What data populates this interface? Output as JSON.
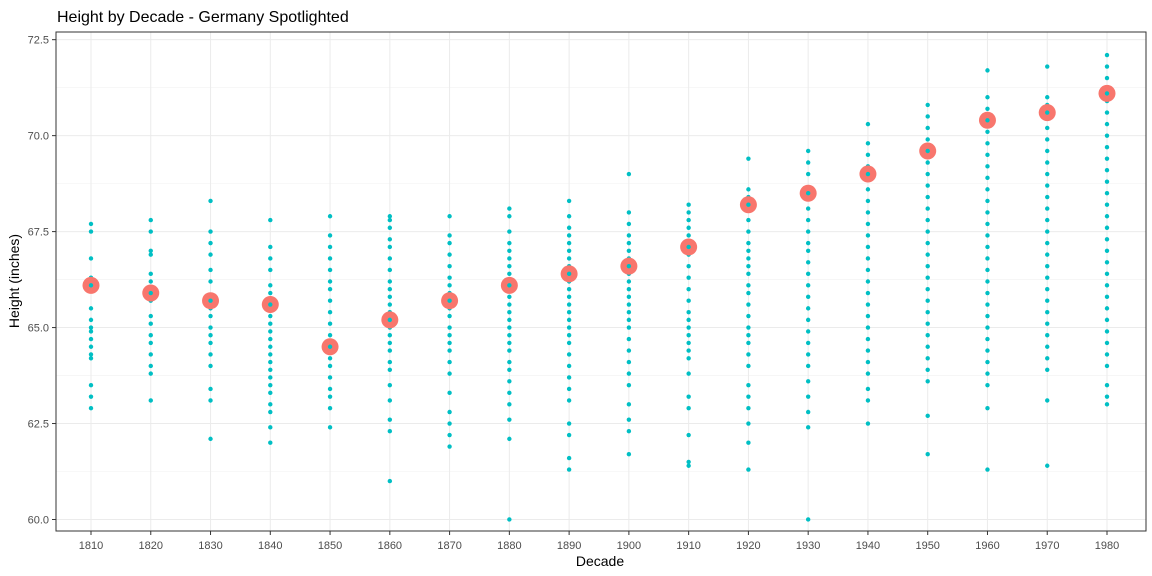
{
  "chart_data": {
    "type": "scatter",
    "title": "Height by Decade - Germany Spotlighted",
    "xlabel": "Decade",
    "ylabel": "Height (inches)",
    "x_ticks": [
      "1810",
      "1820",
      "1830",
      "1840",
      "1850",
      "1860",
      "1870",
      "1880",
      "1890",
      "1900",
      "1910",
      "1920",
      "1930",
      "1940",
      "1950",
      "1960",
      "1970",
      "1980"
    ],
    "y_ticks": [
      "60.0",
      "62.5",
      "65.0",
      "67.5",
      "70.0",
      "72.5"
    ],
    "ylim": [
      59.7,
      72.7
    ],
    "grid": true,
    "colors": {
      "points": "#00BFC4",
      "highlight": "#F8766D"
    },
    "series": [
      {
        "role": "countries",
        "points": [
          {
            "decade": 1810,
            "values": [
              67.7,
              67.5,
              66.8,
              66.3,
              66.1,
              65.5,
              65.2,
              65.0,
              64.9,
              64.7,
              64.5,
              64.3,
              64.2,
              63.5,
              63.2,
              62.9
            ]
          },
          {
            "decade": 1820,
            "values": [
              67.8,
              67.5,
              67.0,
              66.9,
              66.4,
              66.2,
              65.9,
              65.7,
              65.3,
              65.1,
              64.8,
              64.6,
              64.3,
              64.0,
              63.8,
              63.1
            ]
          },
          {
            "decade": 1830,
            "values": [
              68.3,
              67.5,
              67.2,
              66.9,
              66.5,
              66.2,
              65.8,
              65.5,
              65.3,
              65.0,
              64.8,
              64.6,
              64.3,
              64.0,
              63.4,
              63.1,
              62.1
            ]
          },
          {
            "decade": 1840,
            "values": [
              67.8,
              67.1,
              66.8,
              66.5,
              66.1,
              65.9,
              65.7,
              65.5,
              65.3,
              65.1,
              64.9,
              64.7,
              64.5,
              64.3,
              64.1,
              63.9,
              63.7,
              63.5,
              63.3,
              63.0,
              62.8,
              62.4,
              62.0
            ]
          },
          {
            "decade": 1850,
            "values": [
              67.9,
              67.4,
              67.1,
              66.8,
              66.5,
              66.2,
              66.0,
              65.7,
              65.4,
              65.1,
              64.8,
              64.6,
              64.4,
              64.2,
              64.0,
              63.7,
              63.4,
              63.2,
              62.9,
              62.4
            ]
          },
          {
            "decade": 1860,
            "values": [
              67.9,
              67.8,
              67.6,
              67.3,
              67.1,
              66.8,
              66.5,
              66.2,
              66.0,
              65.8,
              65.6,
              65.4,
              65.2,
              65.0,
              64.8,
              64.6,
              64.4,
              64.1,
              63.9,
              63.5,
              63.1,
              62.6,
              62.3,
              61.0
            ]
          },
          {
            "decade": 1870,
            "values": [
              67.9,
              67.4,
              67.2,
              66.9,
              66.6,
              66.3,
              66.1,
              65.9,
              65.7,
              65.5,
              65.3,
              65.0,
              64.8,
              64.6,
              64.4,
              64.1,
              63.8,
              63.3,
              62.8,
              62.5,
              62.2,
              61.9
            ]
          },
          {
            "decade": 1880,
            "values": [
              68.1,
              67.9,
              67.5,
              67.2,
              67.0,
              66.8,
              66.6,
              66.4,
              66.2,
              66.0,
              65.8,
              65.6,
              65.4,
              65.2,
              65.0,
              64.8,
              64.6,
              64.4,
              64.1,
              63.9,
              63.6,
              63.3,
              63.0,
              62.6,
              62.1,
              60.0
            ]
          },
          {
            "decade": 1890,
            "values": [
              68.3,
              67.9,
              67.6,
              67.4,
              67.2,
              67.0,
              66.8,
              66.6,
              66.4,
              66.2,
              66.0,
              65.8,
              65.6,
              65.4,
              65.2,
              65.0,
              64.8,
              64.6,
              64.3,
              64.0,
              63.7,
              63.4,
              63.1,
              62.5,
              62.2,
              61.6,
              61.3
            ]
          },
          {
            "decade": 1900,
            "values": [
              69.0,
              68.0,
              67.7,
              67.4,
              67.2,
              67.0,
              66.8,
              66.6,
              66.4,
              66.2,
              66.0,
              65.8,
              65.6,
              65.4,
              65.2,
              65.0,
              64.7,
              64.4,
              64.1,
              63.8,
              63.5,
              63.0,
              62.6,
              62.3,
              61.7
            ]
          },
          {
            "decade": 1910,
            "values": [
              68.2,
              68.0,
              67.8,
              67.6,
              67.4,
              67.1,
              66.9,
              66.6,
              66.3,
              66.0,
              65.7,
              65.4,
              65.2,
              65.0,
              64.8,
              64.6,
              64.4,
              64.2,
              63.8,
              63.2,
              62.9,
              62.2,
              61.5,
              61.4
            ]
          },
          {
            "decade": 1920,
            "values": [
              69.4,
              68.6,
              68.4,
              68.2,
              67.8,
              67.5,
              67.2,
              67.0,
              66.8,
              66.6,
              66.4,
              66.1,
              65.9,
              65.6,
              65.3,
              65.0,
              64.8,
              64.6,
              64.3,
              64.0,
              63.5,
              63.2,
              62.9,
              62.5,
              62.0,
              61.3
            ]
          },
          {
            "decade": 1930,
            "values": [
              69.6,
              69.3,
              69.0,
              68.6,
              68.4,
              68.1,
              67.8,
              67.5,
              67.2,
              67.0,
              66.7,
              66.4,
              66.1,
              65.8,
              65.5,
              65.2,
              64.9,
              64.6,
              64.3,
              64.0,
              63.6,
              63.2,
              62.8,
              62.4,
              60.0
            ]
          },
          {
            "decade": 1940,
            "values": [
              70.3,
              69.8,
              69.5,
              69.2,
              68.9,
              68.6,
              68.3,
              68.0,
              67.7,
              67.4,
              67.1,
              66.8,
              66.5,
              66.2,
              65.9,
              65.6,
              65.3,
              65.0,
              64.7,
              64.4,
              64.1,
              63.8,
              63.4,
              63.1,
              62.5
            ]
          },
          {
            "decade": 1950,
            "values": [
              70.8,
              70.5,
              70.2,
              69.9,
              69.6,
              69.3,
              69.0,
              68.7,
              68.4,
              68.1,
              67.8,
              67.5,
              67.2,
              66.9,
              66.6,
              66.3,
              66.0,
              65.7,
              65.4,
              65.1,
              64.8,
              64.5,
              64.2,
              63.9,
              63.6,
              62.7,
              61.7
            ]
          },
          {
            "decade": 1960,
            "values": [
              71.7,
              71.0,
              70.7,
              70.4,
              70.1,
              69.8,
              69.5,
              69.2,
              68.9,
              68.6,
              68.3,
              68.0,
              67.7,
              67.4,
              67.1,
              66.8,
              66.5,
              66.2,
              65.9,
              65.6,
              65.3,
              65.0,
              64.7,
              64.4,
              64.1,
              63.8,
              63.5,
              62.9,
              61.3
            ]
          },
          {
            "decade": 1970,
            "values": [
              71.8,
              71.0,
              70.8,
              70.5,
              70.2,
              69.9,
              69.6,
              69.3,
              69.0,
              68.7,
              68.4,
              68.1,
              67.8,
              67.5,
              67.2,
              66.9,
              66.6,
              66.3,
              66.0,
              65.7,
              65.4,
              65.1,
              64.8,
              64.5,
              64.2,
              63.9,
              63.1,
              61.4
            ]
          },
          {
            "decade": 1980,
            "values": [
              72.1,
              71.8,
              71.5,
              71.2,
              70.9,
              70.6,
              70.3,
              70.0,
              69.7,
              69.4,
              69.1,
              68.8,
              68.5,
              68.2,
              67.9,
              67.6,
              67.3,
              67.0,
              66.7,
              66.4,
              66.1,
              65.8,
              65.5,
              65.2,
              64.9,
              64.6,
              64.3,
              64.0,
              63.5,
              63.2,
              63.0
            ]
          }
        ]
      },
      {
        "role": "highlight",
        "x": [
          1810,
          1820,
          1830,
          1840,
          1850,
          1860,
          1870,
          1880,
          1890,
          1900,
          1910,
          1920,
          1930,
          1940,
          1950,
          1960,
          1970,
          1980
        ],
        "values": [
          66.1,
          65.9,
          65.7,
          65.6,
          64.5,
          65.2,
          65.7,
          66.1,
          66.4,
          66.6,
          67.1,
          68.2,
          68.5,
          69.0,
          69.6,
          70.4,
          70.6,
          71.1
        ]
      }
    ]
  }
}
